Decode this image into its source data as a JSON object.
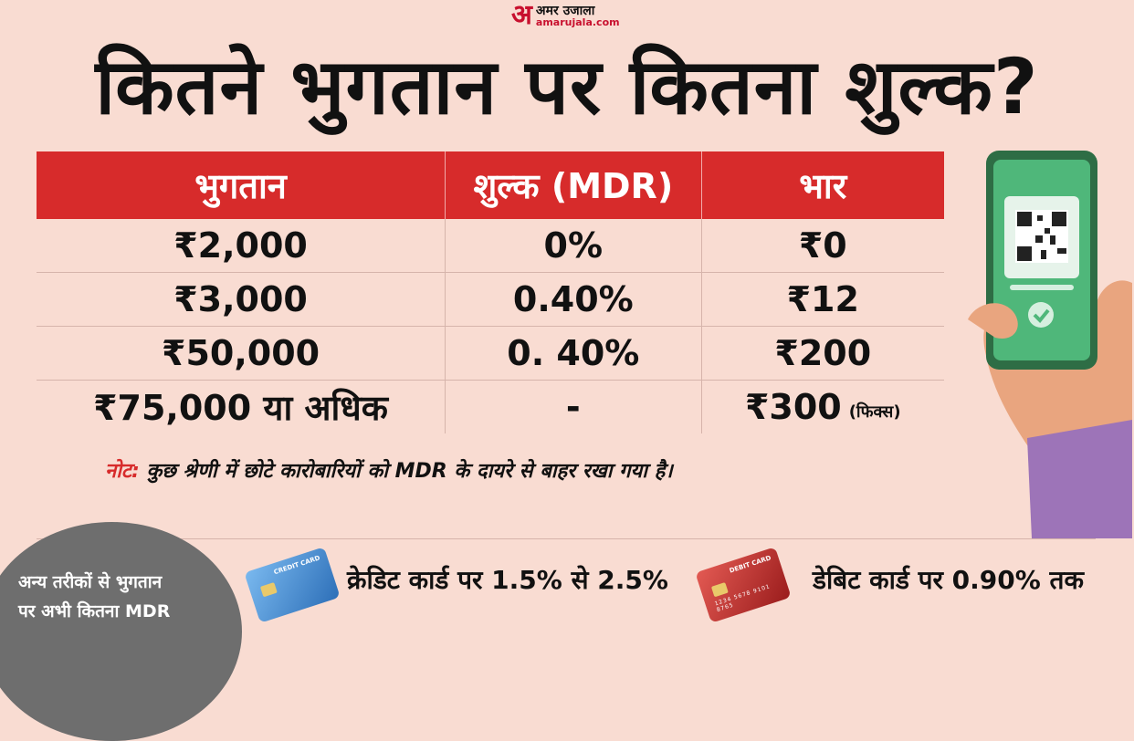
{
  "brand": {
    "mark": "अ",
    "name": "अमर उजाला",
    "url": "amarujala.com"
  },
  "title": "कितने भुगतान पर कितना शुल्क?",
  "table": {
    "headers": [
      "भुगतान",
      "शुल्क (MDR)",
      "भार"
    ],
    "rows": [
      {
        "payment": "₹2,000",
        "mdr": "0%",
        "charge": "₹0",
        "suffix": ""
      },
      {
        "payment": "₹3,000",
        "mdr": "0.40%",
        "charge": "₹12",
        "suffix": ""
      },
      {
        "payment": "₹50,000",
        "mdr": "0. 40%",
        "charge": "₹200",
        "suffix": ""
      },
      {
        "payment": "₹75,000 या अधिक",
        "mdr": "-",
        "charge": "₹300",
        "suffix": "(फिक्स)"
      }
    ]
  },
  "note": {
    "label": "नोट:",
    "text": " कुछ श्रेणी में छोटे कारोबारियों को MDR के दायरे से बाहर रखा गया है।"
  },
  "other_methods": {
    "heading_line1": "अन्य तरीकों से भुगतान",
    "heading_line2": "पर अभी कितना MDR",
    "credit": "क्रेडिट कार्ड पर 1.5% से 2.5%",
    "debit": "डेबिट कार्ड पर 0.90% तक",
    "credit_card_text": "CREDIT CARD",
    "debit_card_text": "DEBIT CARD",
    "card_number": "1234 5678 9101 8765"
  },
  "colors": {
    "background": "#f9dcd2",
    "accent": "#d72b2b",
    "circle": "#6e6e6e"
  },
  "icons": [
    "phone-qr-icon",
    "credit-card-icon",
    "debit-card-icon"
  ]
}
